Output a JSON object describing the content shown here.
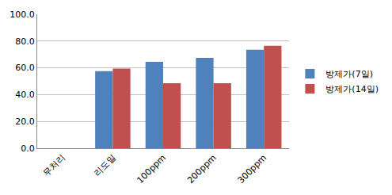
{
  "chart_data": {
    "type": "bar",
    "categories": [
      "무처리",
      "리도밀",
      "100ppm",
      "200ppm",
      "300ppm"
    ],
    "series": [
      {
        "name": "방제가(7일)",
        "color": "#4f81bd",
        "values": [
          0,
          57.5,
          64.5,
          67.5,
          73.5
        ]
      },
      {
        "name": "방제가(14일)",
        "color": "#c0504d",
        "values": [
          0,
          59.5,
          48.5,
          48.5,
          76.5
        ]
      }
    ],
    "ylim": [
      0,
      100
    ],
    "yticks": [
      {
        "value": 0,
        "label": "0.0"
      },
      {
        "value": 20,
        "label": "20.0"
      },
      {
        "value": 40,
        "label": "40.0"
      },
      {
        "value": 60,
        "label": "60.0"
      },
      {
        "value": 80,
        "label": "80.0"
      },
      {
        "value": 100,
        "label": "100.0"
      }
    ],
    "grid": true,
    "legend": "right"
  }
}
